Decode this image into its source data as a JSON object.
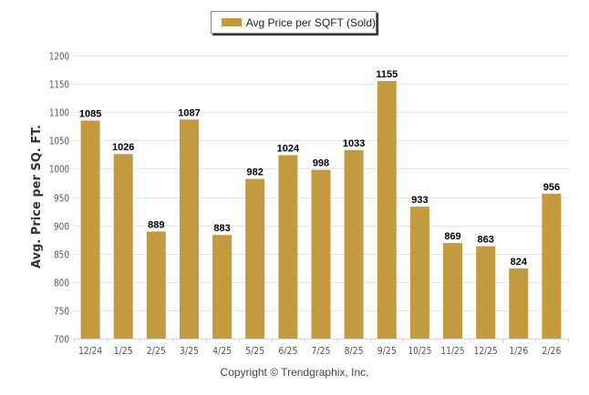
{
  "chart_data": {
    "type": "bar",
    "title": "",
    "legend": {
      "entries": [
        "Avg Price per SQFT (Sold)"
      ],
      "placement": "top-center"
    },
    "xlabel": "",
    "ylabel": "Avg. Price per SQ. FT.",
    "categories": [
      "12/24",
      "1/25",
      "2/25",
      "3/25",
      "4/25",
      "5/25",
      "6/25",
      "7/25",
      "8/25",
      "9/25",
      "10/25",
      "11/25",
      "12/25",
      "1/26",
      "2/26"
    ],
    "series": [
      {
        "name": "Avg Price per SQFT (Sold)",
        "values": [
          1085,
          1026,
          889,
          1087,
          883,
          982,
          1024,
          998,
          1033,
          1155,
          933,
          869,
          863,
          824,
          956
        ]
      }
    ],
    "ylim": [
      700,
      1200
    ],
    "yticks": [
      700,
      750,
      800,
      850,
      900,
      950,
      1000,
      1050,
      1100,
      1150,
      1200
    ],
    "grid": true,
    "data_labels": true,
    "colors": {
      "bar": "#c49a3e",
      "grid": "#e6e6e6",
      "axis_text": "#555555",
      "label_text": "#000000"
    }
  },
  "footer": {
    "copyright": "Copyright © Trendgraphix, Inc."
  }
}
